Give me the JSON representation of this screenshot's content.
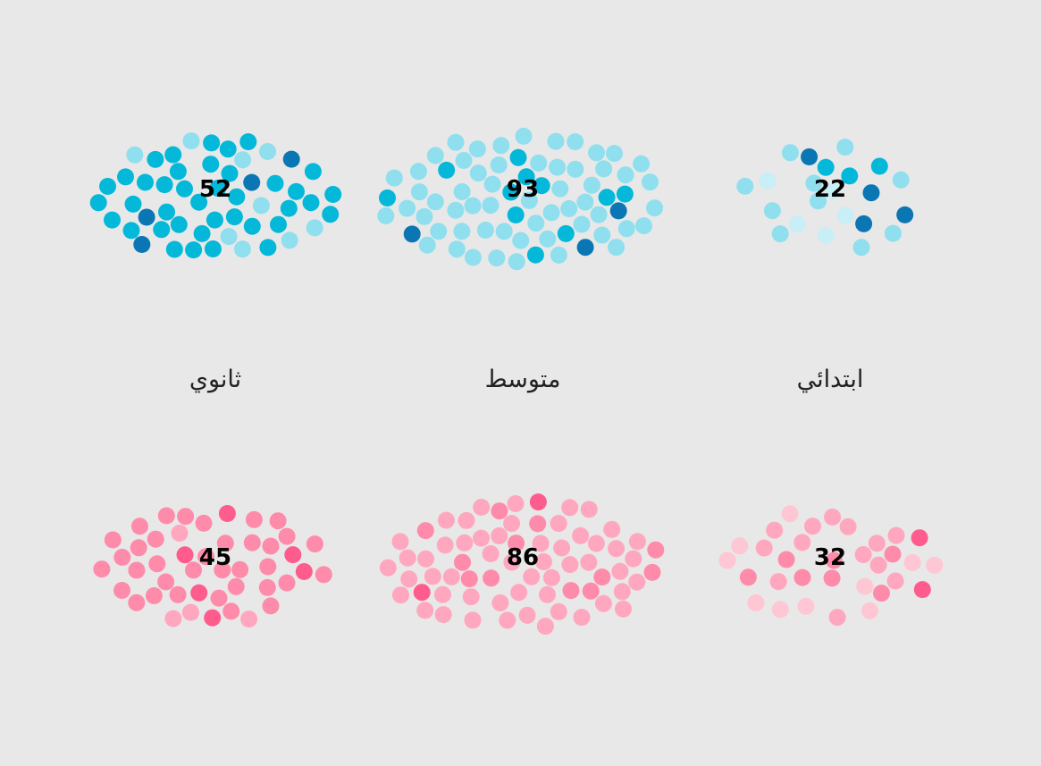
{
  "chart_data": {
    "type": "scatter",
    "title": "",
    "categories": [
      "ثانوي",
      "متوسط",
      "ابتدائي"
    ],
    "series": [
      {
        "values": [
          52,
          93,
          22
        ],
        "shades": [
          "#0a77b4",
          "#04b8d9",
          "#8fdfef",
          "#c8eef6"
        ]
      },
      {
        "values": [
          45,
          86,
          32
        ],
        "shades": [
          "#ff5c8e",
          "#ff8bab",
          "#ffa7bf",
          "#ffc6d3"
        ]
      }
    ],
    "shade_mix": [
      [
        0.12,
        0.78,
        0.1,
        0.0
      ],
      [
        0.06,
        0.14,
        0.8,
        0.0
      ],
      [
        0.05,
        0.2,
        0.45,
        0.3
      ]
    ],
    "label_values": [
      "52",
      "93",
      "22",
      "45",
      "86",
      "32"
    ]
  }
}
